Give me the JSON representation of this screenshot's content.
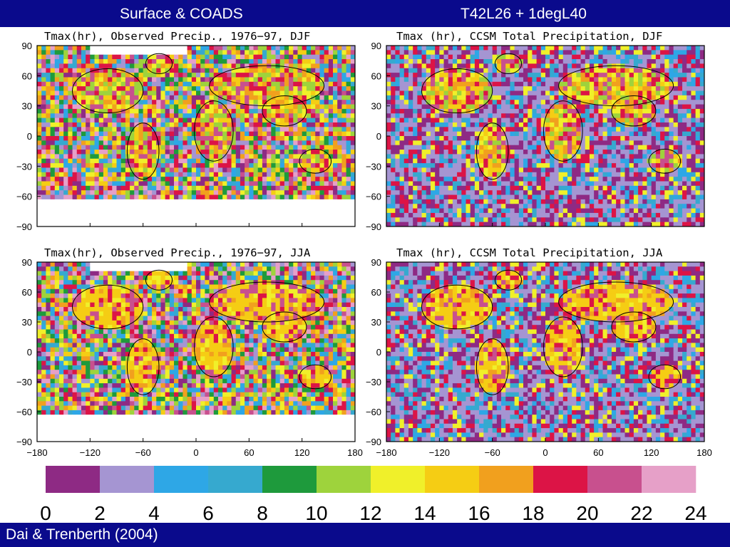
{
  "header": {
    "left_title": "Surface & COADS",
    "right_title": "T42L26 + 1degL40"
  },
  "footer": {
    "citation": "Dai & Trenberth (2004)"
  },
  "chart_data": [
    {
      "type": "heatmap",
      "title": "Tmax(hr), Observed Precip., 1976−97, DJF",
      "yticks": [
        "90",
        "60",
        "30",
        "0",
        "−30",
        "−60",
        "−90"
      ],
      "xticks": [],
      "xlim": [
        -180,
        180
      ],
      "ylim": [
        -90,
        90
      ],
      "grid": false
    },
    {
      "type": "heatmap",
      "title": "Tmax (hr), CCSM Total Precipitation, DJF",
      "yticks": [
        "90",
        "60",
        "30",
        "0",
        "−30",
        "−60",
        "−90"
      ],
      "xticks": [],
      "xlim": [
        -180,
        180
      ],
      "ylim": [
        -90,
        90
      ],
      "grid": false
    },
    {
      "type": "heatmap",
      "title": "Tmax(hr), Observed Precip., 1976−97, JJA",
      "yticks": [
        "90",
        "60",
        "30",
        "0",
        "−30",
        "−60",
        "−90"
      ],
      "xticks": [
        "−180",
        "−120",
        "−60",
        "0",
        "60",
        "120",
        "180"
      ],
      "xlim": [
        -180,
        180
      ],
      "ylim": [
        -90,
        90
      ],
      "grid": false
    },
    {
      "type": "heatmap",
      "title": "Tmax (hr), CCSM Total Precipitation, JJA",
      "yticks": [
        "90",
        "60",
        "30",
        "0",
        "−30",
        "−60",
        "−90"
      ],
      "xticks": [
        "−180",
        "−120",
        "−60",
        "0",
        "60",
        "120",
        "180"
      ],
      "xlim": [
        -180,
        180
      ],
      "ylim": [
        -90,
        90
      ],
      "grid": false
    }
  ],
  "colorbar": {
    "labels": [
      "0",
      "2",
      "4",
      "6",
      "8",
      "10",
      "12",
      "14",
      "16",
      "18",
      "20",
      "22",
      "24"
    ],
    "colors": [
      "#8e2a84",
      "#a595d2",
      "#2ea7e6",
      "#36a9cf",
      "#1e9a3c",
      "#9ed33c",
      "#f0f02a",
      "#f5cd14",
      "#f1a01e",
      "#dc1446",
      "#c8508e",
      "#e6a0c8"
    ]
  }
}
